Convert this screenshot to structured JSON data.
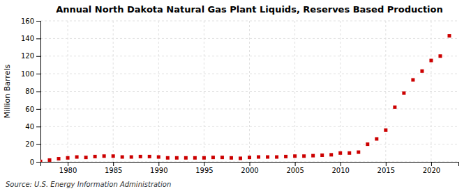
{
  "chart_data": {
    "type": "scatter",
    "title": "Annual North Dakota Natural Gas Plant Liquids, Reserves Based Production",
    "ylabel": "Million Barrels",
    "annotations": [
      "Source: U.S. Energy Information Administration"
    ],
    "x": [
      1977,
      1978,
      1979,
      1980,
      1981,
      1982,
      1983,
      1984,
      1985,
      1986,
      1987,
      1988,
      1989,
      1990,
      1991,
      1992,
      1993,
      1994,
      1995,
      1996,
      1997,
      1998,
      1999,
      2000,
      2001,
      2002,
      2003,
      2004,
      2005,
      2006,
      2007,
      2008,
      2009,
      2010,
      2011,
      2012,
      2013,
      2014,
      2015,
      2016,
      2017,
      2018,
      2019,
      2020,
      2021,
      2022
    ],
    "values": [
      0.5,
      2.0,
      3.5,
      4.5,
      5.5,
      5.0,
      6.0,
      6.5,
      6.5,
      5.5,
      5.5,
      6.0,
      6.0,
      5.5,
      4.5,
      4.5,
      4.5,
      4.5,
      4.5,
      5.0,
      5.0,
      4.5,
      4.0,
      5.0,
      5.5,
      5.5,
      5.5,
      6.0,
      6.5,
      6.5,
      7.0,
      7.5,
      8.0,
      10.0,
      10.0,
      11.0,
      20.0,
      26.0,
      36.0,
      62.0,
      78.0,
      93.0,
      103.0,
      115.0,
      120.0,
      143.0
    ],
    "color": "#cc0000",
    "marker": "square",
    "xlim": [
      1977,
      2023
    ],
    "ylim": [
      0,
      160
    ],
    "xticks": [
      1980,
      1985,
      1990,
      1995,
      2000,
      2005,
      2010,
      2015,
      2020
    ],
    "yticks": [
      0,
      20,
      40,
      60,
      80,
      100,
      120,
      140,
      160
    ],
    "grid": true
  }
}
